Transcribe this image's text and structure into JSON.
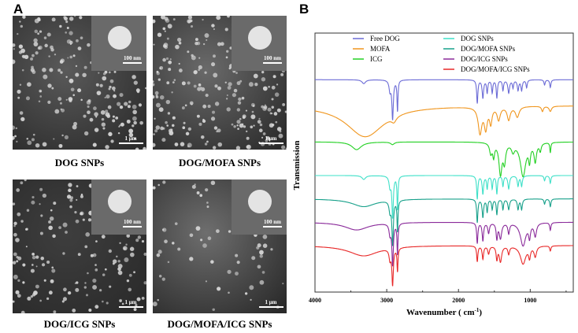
{
  "panel_a": {
    "label": "A",
    "images": [
      {
        "caption": "DOG SNPs",
        "inset_scale": "100 nm",
        "scale": "1 μm",
        "density": 0.9,
        "tone": "#5a5a5a"
      },
      {
        "caption": "DOG/MOFA SNPs",
        "inset_scale": "100 nm",
        "scale": "1 μm",
        "density": 1.0,
        "tone": "#6a6a6a"
      },
      {
        "caption": "DOG/ICG SNPs",
        "inset_scale": "100 nm",
        "scale": "1 μm",
        "density": 0.7,
        "tone": "#3e3e3e"
      },
      {
        "caption": "DOG/MOFA/ICG SNPs",
        "inset_scale": "100 nm",
        "scale": "1 μm",
        "density": 0.25,
        "tone": "#6e6e6e"
      }
    ]
  },
  "chart_data": {
    "panel_label": "B",
    "type": "line",
    "xlabel": "Wavenumber ( cm",
    "xlabel_sup": "-1",
    "xlabel_end": ")",
    "ylabel": "Transmission",
    "xlim": [
      4000,
      400
    ],
    "ylim": [
      0,
      100
    ],
    "xticks": [
      4000,
      3000,
      2000,
      1000
    ],
    "xtick_labels": [
      "4000",
      "3000",
      "2000",
      "1000"
    ],
    "legend": "top",
    "series": [
      {
        "name": "Free DOG",
        "color": "#6b6bd6",
        "base": 82,
        "slope": 0,
        "peaks": [
          [
            3320,
            1.5,
            30
          ],
          [
            2955,
            4,
            15
          ],
          [
            2918,
            15,
            12
          ],
          [
            2850,
            12,
            8
          ],
          [
            1738,
            9,
            10
          ],
          [
            1660,
            7,
            12
          ],
          [
            1600,
            5,
            10
          ],
          [
            1530,
            5,
            10
          ],
          [
            1465,
            7,
            10
          ],
          [
            1380,
            4,
            10
          ],
          [
            1300,
            5,
            14
          ],
          [
            1240,
            3,
            10
          ],
          [
            1170,
            4,
            12
          ],
          [
            1120,
            4,
            12
          ],
          [
            1050,
            3,
            10
          ],
          [
            800,
            2,
            10
          ],
          [
            720,
            3,
            10
          ]
        ]
      },
      {
        "name": "MOFA",
        "color": "#f0961e",
        "base": 72,
        "slope": 0,
        "peaks": [
          [
            3300,
            12,
            320
          ],
          [
            2900,
            2,
            40
          ],
          [
            1700,
            10,
            30
          ],
          [
            1620,
            8,
            25
          ],
          [
            1550,
            6,
            20
          ],
          [
            1440,
            5,
            25
          ],
          [
            1300,
            5,
            25
          ],
          [
            1180,
            4,
            30
          ],
          [
            830,
            2,
            15
          ],
          [
            720,
            2,
            20
          ]
        ]
      },
      {
        "name": "ICG",
        "color": "#22d022",
        "base": 58,
        "slope": 0,
        "peaks": [
          [
            3420,
            3,
            80
          ],
          [
            2920,
            1,
            30
          ],
          [
            1550,
            4,
            20
          ],
          [
            1510,
            5,
            15
          ],
          [
            1415,
            12,
            25
          ],
          [
            1360,
            7,
            20
          ],
          [
            1240,
            3,
            25
          ],
          [
            1100,
            13,
            45
          ],
          [
            1010,
            6,
            15
          ],
          [
            930,
            7,
            20
          ],
          [
            860,
            3,
            15
          ],
          [
            720,
            4,
            8
          ]
        ]
      },
      {
        "name": "DOG SNPs",
        "color": "#3ee0c8",
        "base": 45,
        "slope": 0,
        "peaks": [
          [
            3320,
            1.5,
            30
          ],
          [
            2955,
            4,
            15
          ],
          [
            2918,
            16,
            12
          ],
          [
            2850,
            13,
            8
          ],
          [
            1738,
            9,
            10
          ],
          [
            1660,
            7,
            12
          ],
          [
            1600,
            5,
            10
          ],
          [
            1530,
            5,
            10
          ],
          [
            1465,
            7,
            10
          ],
          [
            1380,
            4,
            10
          ],
          [
            1300,
            5,
            14
          ],
          [
            1170,
            4,
            12
          ],
          [
            1120,
            4,
            12
          ],
          [
            800,
            2,
            10
          ],
          [
            720,
            3,
            10
          ]
        ]
      },
      {
        "name": "DOG/MOFA SNPs",
        "color": "#17a08a",
        "base": 36,
        "slope": 0,
        "peaks": [
          [
            3320,
            3,
            200
          ],
          [
            2955,
            4,
            15
          ],
          [
            2918,
            17,
            12
          ],
          [
            2850,
            12,
            8
          ],
          [
            1738,
            9,
            10
          ],
          [
            1660,
            7,
            12
          ],
          [
            1600,
            5,
            10
          ],
          [
            1530,
            4,
            10
          ],
          [
            1465,
            6,
            10
          ],
          [
            1380,
            4,
            10
          ],
          [
            1300,
            4,
            14
          ],
          [
            1170,
            4,
            12
          ],
          [
            1120,
            4,
            12
          ],
          [
            800,
            2,
            10
          ],
          [
            720,
            3,
            10
          ]
        ]
      },
      {
        "name": "DOG/ICG SNPs",
        "color": "#8a2a9a",
        "base": 27,
        "slope": 0,
        "peaks": [
          [
            3420,
            3,
            200
          ],
          [
            2955,
            4,
            15
          ],
          [
            2918,
            16,
            12
          ],
          [
            2850,
            12,
            8
          ],
          [
            1738,
            8,
            10
          ],
          [
            1660,
            7,
            12
          ],
          [
            1580,
            4,
            14
          ],
          [
            1465,
            6,
            12
          ],
          [
            1415,
            6,
            20
          ],
          [
            1300,
            4,
            14
          ],
          [
            1100,
            9,
            45
          ],
          [
            1010,
            5,
            15
          ],
          [
            930,
            5,
            20
          ],
          [
            720,
            3,
            10
          ]
        ]
      },
      {
        "name": "DOG/MOFA/ICG SNPs",
        "color": "#e82828",
        "base": 18,
        "slope": 0,
        "peaks": [
          [
            3320,
            4,
            250
          ],
          [
            2955,
            4,
            15
          ],
          [
            2918,
            14,
            12
          ],
          [
            2850,
            9,
            8
          ],
          [
            1738,
            6,
            10
          ],
          [
            1660,
            5,
            12
          ],
          [
            1580,
            3,
            14
          ],
          [
            1465,
            5,
            12
          ],
          [
            1415,
            6,
            20
          ],
          [
            1300,
            3,
            14
          ],
          [
            1100,
            7,
            45
          ],
          [
            1010,
            4,
            15
          ],
          [
            930,
            4,
            20
          ],
          [
            720,
            2,
            10
          ]
        ]
      }
    ]
  }
}
